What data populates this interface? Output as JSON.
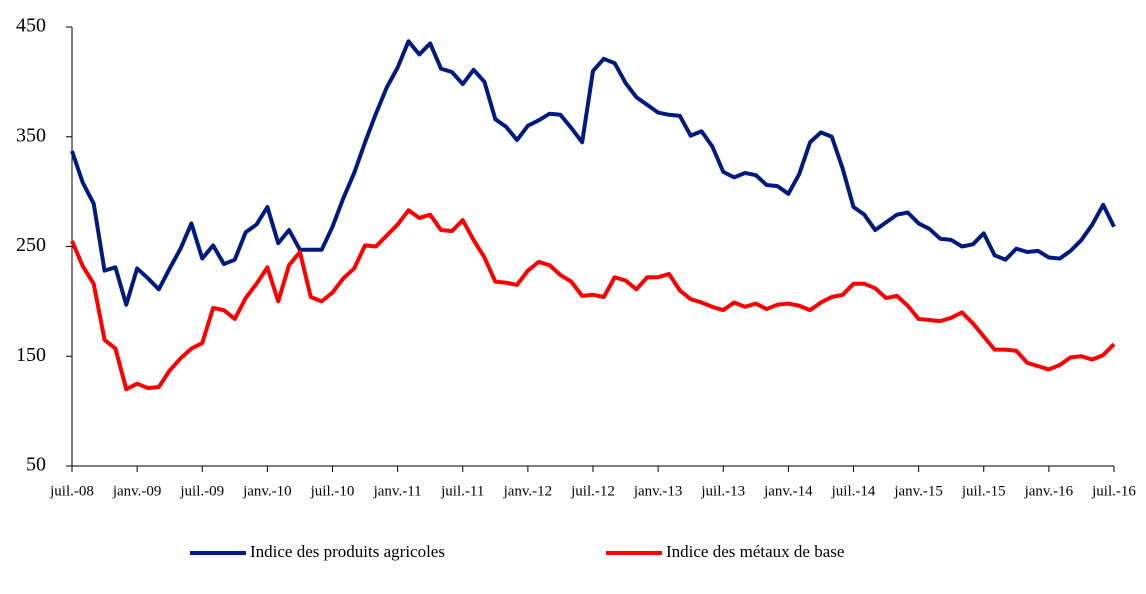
{
  "chart_data": {
    "type": "line",
    "categories": [
      "juil.-08",
      null,
      null,
      null,
      null,
      null,
      "janv.-09",
      null,
      null,
      null,
      null,
      null,
      "juil.-09",
      null,
      null,
      null,
      null,
      null,
      "janv.-10",
      null,
      null,
      null,
      null,
      null,
      "juil.-10",
      null,
      null,
      null,
      null,
      null,
      "janv.-11",
      null,
      null,
      null,
      null,
      null,
      "juil.-11",
      null,
      null,
      null,
      null,
      null,
      "janv.-12",
      null,
      null,
      null,
      null,
      null,
      "juil.-12",
      null,
      null,
      null,
      null,
      null,
      "janv.-13",
      null,
      null,
      null,
      null,
      null,
      "juil.-13",
      null,
      null,
      null,
      null,
      null,
      "janv.-14",
      null,
      null,
      null,
      null,
      null,
      "juil.-14",
      null,
      null,
      null,
      null,
      null,
      "janv.-15",
      null,
      null,
      null,
      null,
      null,
      "juil.-15",
      null,
      null,
      null,
      null,
      null,
      "janv.-16",
      null,
      null,
      null,
      null,
      null,
      "juil.-16"
    ],
    "series": [
      {
        "name": "Indice des produits agricoles",
        "color": "#001a80",
        "values": [
          337,
          308,
          289,
          228,
          231,
          197,
          230,
          221,
          211,
          230,
          248,
          271,
          239,
          251,
          234,
          238,
          263,
          270,
          286,
          253,
          265,
          247,
          247,
          247,
          268,
          294,
          317,
          345,
          371,
          395,
          413,
          437,
          425,
          435,
          412,
          409,
          398,
          411,
          400,
          366,
          359,
          347,
          360,
          365,
          371,
          370,
          358,
          345,
          410,
          421,
          417,
          399,
          386,
          379,
          372,
          370,
          369,
          351,
          355,
          341,
          318,
          313,
          317,
          315,
          306,
          305,
          298,
          316,
          345,
          354,
          350,
          321,
          286,
          279,
          265,
          272,
          279,
          281,
          271,
          266,
          257,
          256,
          250,
          252,
          262,
          242,
          238,
          248,
          245,
          246,
          240,
          239,
          246,
          256,
          270,
          288,
          268
        ]
      },
      {
        "name": "Indice des métaux de base",
        "color": "#ff0000",
        "values": [
          255,
          232,
          216,
          165,
          157,
          120,
          125,
          121,
          122,
          137,
          148,
          157,
          162,
          194,
          192,
          184,
          203,
          216,
          231,
          200,
          233,
          245,
          204,
          200,
          208,
          221,
          230,
          251,
          250,
          260,
          270,
          283,
          276,
          279,
          265,
          264,
          274,
          256,
          240,
          218,
          217,
          215,
          228,
          236,
          233,
          224,
          218,
          205,
          206,
          204,
          222,
          219,
          211,
          222,
          222,
          225,
          210,
          202,
          199,
          195,
          192,
          199,
          195,
          198,
          193,
          197,
          198,
          196,
          192,
          199,
          204,
          206,
          216,
          216,
          212,
          203,
          205,
          196,
          184,
          183,
          182,
          185,
          190,
          180,
          168,
          156,
          156,
          155,
          144,
          141,
          138,
          142,
          149,
          150,
          147,
          151,
          161
        ]
      }
    ],
    "ylim": [
      50,
      450
    ],
    "yticks": [
      50,
      150,
      250,
      350,
      450
    ],
    "grid": false,
    "legend": "bottom"
  }
}
